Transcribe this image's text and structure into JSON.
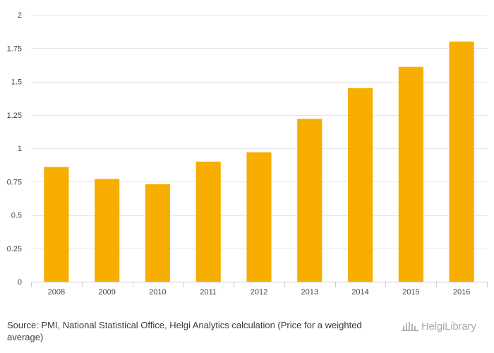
{
  "chart_data": {
    "type": "bar",
    "categories": [
      "2008",
      "2009",
      "2010",
      "2011",
      "2012",
      "2013",
      "2014",
      "2015",
      "2016"
    ],
    "values": [
      0.86,
      0.77,
      0.73,
      0.9,
      0.97,
      1.22,
      1.45,
      1.61,
      1.8
    ],
    "ylim": [
      0,
      2
    ],
    "yticks": [
      "0",
      "0.25",
      "0.5",
      "0.75",
      "1",
      "1.25",
      "1.5",
      "1.75",
      "2"
    ],
    "grid": true,
    "bar_color": "#f7ae00",
    "title": "",
    "xlabel": "",
    "ylabel": ""
  },
  "footer": {
    "source": "Source: PMI, National Statistical Office, Helgi Analytics calculation (Price for a weighted average)",
    "logo_text": "HelgiLibrary"
  }
}
